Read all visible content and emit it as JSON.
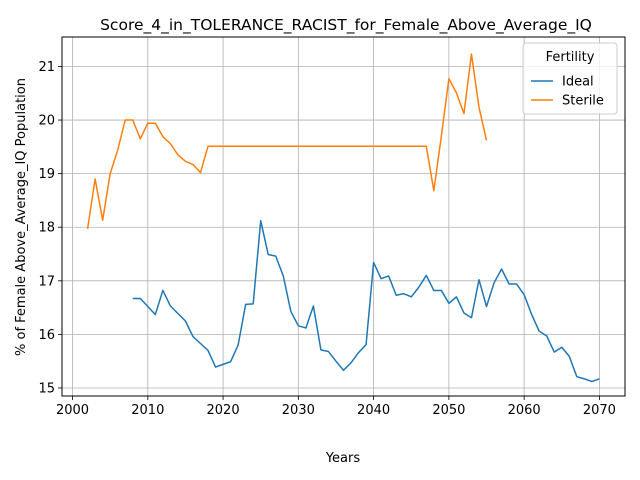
{
  "chart_data": {
    "type": "line",
    "title": "Score_4_in_TOLERANCE_RACIST_for_Female_Above_Average_IQ",
    "xlabel": "Years",
    "ylabel": "% of Female Above_Average_IQ Population",
    "xlim": [
      1998.6,
      2073.4
    ],
    "ylim": [
      14.85,
      21.55
    ],
    "xticks": [
      2000,
      2010,
      2020,
      2030,
      2040,
      2050,
      2060,
      2070
    ],
    "yticks": [
      15,
      16,
      17,
      18,
      19,
      20,
      21
    ],
    "grid": true,
    "legend": {
      "title": "Fertility",
      "placement": "upper-right"
    },
    "series": [
      {
        "name": "Ideal",
        "color": "#1f77b4",
        "points": [
          [
            2008,
            16.67
          ],
          [
            2009,
            16.67
          ],
          [
            2010,
            16.52
          ],
          [
            2011,
            16.37
          ],
          [
            2012,
            16.82
          ],
          [
            2013,
            16.53
          ],
          [
            2014,
            16.39
          ],
          [
            2015,
            16.25
          ],
          [
            2016,
            15.96
          ],
          [
            2017,
            15.83
          ],
          [
            2018,
            15.7
          ],
          [
            2019,
            15.39
          ],
          [
            2020,
            15.44
          ],
          [
            2021,
            15.49
          ],
          [
            2022,
            15.8
          ],
          [
            2023,
            16.56
          ],
          [
            2024,
            16.57
          ],
          [
            2025,
            18.12
          ],
          [
            2026,
            17.49
          ],
          [
            2027,
            17.46
          ],
          [
            2028,
            17.09
          ],
          [
            2029,
            16.43
          ],
          [
            2030,
            16.16
          ],
          [
            2031,
            16.12
          ],
          [
            2032,
            16.53
          ],
          [
            2033,
            15.71
          ],
          [
            2034,
            15.68
          ],
          [
            2035,
            15.5
          ],
          [
            2036,
            15.33
          ],
          [
            2037,
            15.47
          ],
          [
            2038,
            15.66
          ],
          [
            2039,
            15.81
          ],
          [
            2040,
            17.34
          ],
          [
            2041,
            17.04
          ],
          [
            2042,
            17.09
          ],
          [
            2043,
            16.73
          ],
          [
            2044,
            16.76
          ],
          [
            2045,
            16.7
          ],
          [
            2046,
            16.88
          ],
          [
            2047,
            17.1
          ],
          [
            2048,
            16.82
          ],
          [
            2049,
            16.82
          ],
          [
            2050,
            16.58
          ],
          [
            2051,
            16.7
          ],
          [
            2052,
            16.4
          ],
          [
            2053,
            16.31
          ],
          [
            2054,
            17.02
          ],
          [
            2055,
            16.52
          ],
          [
            2056,
            16.96
          ],
          [
            2057,
            17.22
          ],
          [
            2058,
            16.94
          ],
          [
            2059,
            16.94
          ],
          [
            2060,
            16.74
          ],
          [
            2061,
            16.37
          ],
          [
            2062,
            16.06
          ],
          [
            2063,
            15.97
          ],
          [
            2064,
            15.67
          ],
          [
            2065,
            15.76
          ],
          [
            2066,
            15.59
          ],
          [
            2067,
            15.21
          ],
          [
            2068,
            15.17
          ],
          [
            2069,
            15.12
          ],
          [
            2070,
            15.17
          ]
        ]
      },
      {
        "name": "Sterile",
        "color": "#ff7f0e",
        "points": [
          [
            2002,
            17.97
          ],
          [
            2003,
            18.9
          ],
          [
            2004,
            18.13
          ],
          [
            2005,
            19.0
          ],
          [
            2006,
            19.44
          ],
          [
            2007,
            20.0
          ],
          [
            2008,
            20.0
          ],
          [
            2009,
            19.65
          ],
          [
            2010,
            19.94
          ],
          [
            2011,
            19.94
          ],
          [
            2012,
            19.69
          ],
          [
            2013,
            19.56
          ],
          [
            2014,
            19.35
          ],
          [
            2015,
            19.23
          ],
          [
            2016,
            19.17
          ],
          [
            2017,
            19.02
          ],
          [
            2018,
            19.51
          ],
          [
            2019,
            19.51
          ],
          [
            2020,
            19.51
          ],
          [
            2021,
            19.51
          ],
          [
            2022,
            19.51
          ],
          [
            2023,
            19.51
          ],
          [
            2024,
            19.51
          ],
          [
            2025,
            19.51
          ],
          [
            2026,
            19.51
          ],
          [
            2027,
            19.51
          ],
          [
            2028,
            19.51
          ],
          [
            2029,
            19.51
          ],
          [
            2030,
            19.51
          ],
          [
            2031,
            19.51
          ],
          [
            2032,
            19.51
          ],
          [
            2033,
            19.51
          ],
          [
            2034,
            19.51
          ],
          [
            2035,
            19.51
          ],
          [
            2036,
            19.51
          ],
          [
            2037,
            19.51
          ],
          [
            2038,
            19.51
          ],
          [
            2039,
            19.51
          ],
          [
            2040,
            19.51
          ],
          [
            2041,
            19.51
          ],
          [
            2042,
            19.51
          ],
          [
            2043,
            19.51
          ],
          [
            2044,
            19.51
          ],
          [
            2045,
            19.51
          ],
          [
            2046,
            19.51
          ],
          [
            2047,
            19.51
          ],
          [
            2048,
            18.68
          ],
          [
            2049,
            19.7
          ],
          [
            2050,
            20.77
          ],
          [
            2051,
            20.51
          ],
          [
            2052,
            20.12
          ],
          [
            2053,
            21.23
          ],
          [
            2054,
            20.24
          ],
          [
            2055,
            19.62
          ]
        ]
      }
    ]
  }
}
